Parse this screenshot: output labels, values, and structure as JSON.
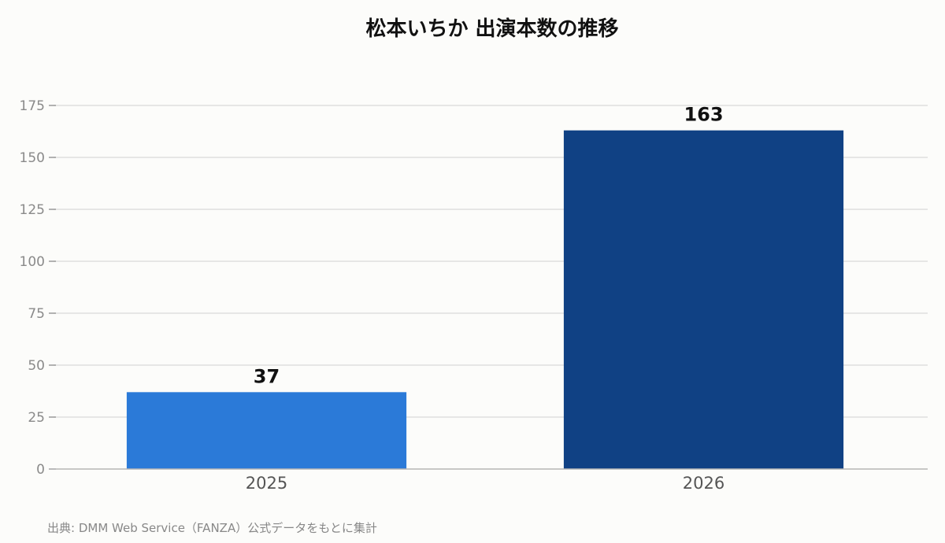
{
  "chart_data": {
    "type": "bar",
    "title": "松本いちか 出演本数の推移",
    "xlabel": "",
    "ylabel": "",
    "categories": [
      "2025",
      "2026"
    ],
    "values": [
      37,
      163
    ],
    "colors": [
      "#2b7ad8",
      "#104184"
    ],
    "ylim": [
      0,
      175
    ],
    "yticks": [
      0,
      25,
      50,
      75,
      100,
      125,
      150,
      175
    ],
    "grid": true,
    "legend": "none",
    "source": "出典: DMM Web Service（FANZA）公式データをもとに集計"
  }
}
